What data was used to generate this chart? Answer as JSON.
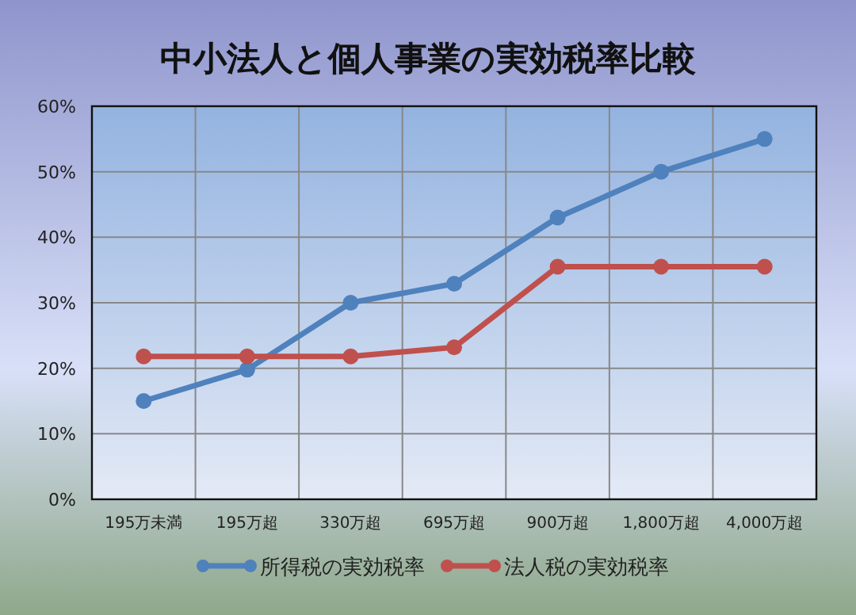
{
  "chart_data": {
    "type": "line",
    "title": "中小法人と個人事業の実効税率比較",
    "categories": [
      "195万未満",
      "195万超",
      "330万超",
      "695万超",
      "900万超",
      "1,800万超",
      "4,000万超"
    ],
    "series": [
      {
        "name": "所得税の実効税率",
        "color": "#4f81bd",
        "values": [
          15,
          19.8,
          30,
          32.9,
          43,
          50,
          55
        ]
      },
      {
        "name": "法人税の実効税率",
        "color": "#c0504d",
        "values": [
          21.8,
          21.8,
          21.8,
          23.2,
          35.5,
          35.5,
          35.5
        ]
      }
    ],
    "ylim": [
      0,
      60
    ],
    "yticks": [
      {
        "value": 0,
        "label": "0%"
      },
      {
        "value": 10,
        "label": "10%"
      },
      {
        "value": 20,
        "label": "20%"
      },
      {
        "value": 30,
        "label": "30%"
      },
      {
        "value": 40,
        "label": "40%"
      },
      {
        "value": 50,
        "label": "50%"
      },
      {
        "value": 60,
        "label": "60%"
      }
    ],
    "grid": true,
    "legend": "bottom",
    "marker": "circle",
    "line_style": "solid"
  }
}
